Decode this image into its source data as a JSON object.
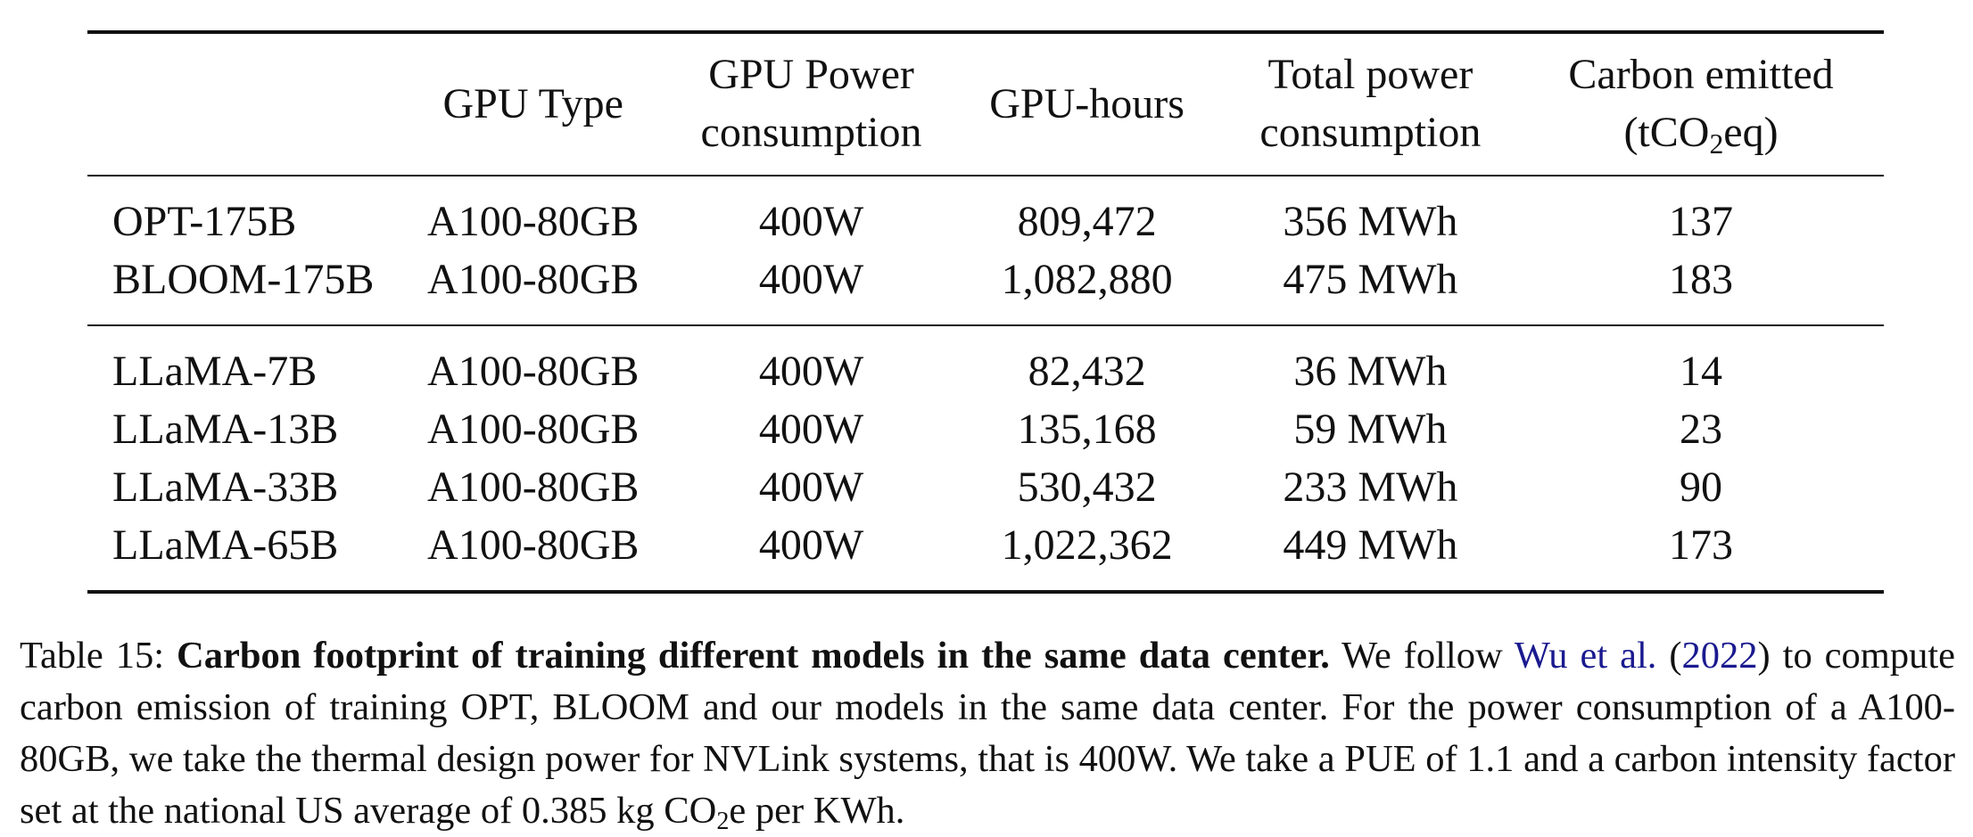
{
  "table": {
    "headers": {
      "model": "",
      "gpu_type": "GPU Type",
      "gpu_power_line1": "GPU Power",
      "gpu_power_line2": "consumption",
      "gpu_hours": "GPU-hours",
      "total_power_line1": "Total power",
      "total_power_line2": "consumption",
      "carbon_line1": "Carbon emitted",
      "carbon_line2_pre": "(tCO",
      "carbon_line2_sub": "2",
      "carbon_line2_post": "eq)"
    },
    "rows": [
      {
        "model": "OPT-175B",
        "gpu_type": "A100-80GB",
        "gpu_power": "400W",
        "gpu_hours": "809,472",
        "total_power": "356 MWh",
        "carbon": "137"
      },
      {
        "model": "BLOOM-175B",
        "gpu_type": "A100-80GB",
        "gpu_power": "400W",
        "gpu_hours": "1,082,880",
        "total_power": "475 MWh",
        "carbon": "183"
      },
      {
        "model": "LLaMA-7B",
        "gpu_type": "A100-80GB",
        "gpu_power": "400W",
        "gpu_hours": "82,432",
        "total_power": "36 MWh",
        "carbon": "14"
      },
      {
        "model": "LLaMA-13B",
        "gpu_type": "A100-80GB",
        "gpu_power": "400W",
        "gpu_hours": "135,168",
        "total_power": "59 MWh",
        "carbon": "23"
      },
      {
        "model": "LLaMA-33B",
        "gpu_type": "A100-80GB",
        "gpu_power": "400W",
        "gpu_hours": "530,432",
        "total_power": "233 MWh",
        "carbon": "90"
      },
      {
        "model": "LLaMA-65B",
        "gpu_type": "A100-80GB",
        "gpu_power": "400W",
        "gpu_hours": "1,022,362",
        "total_power": "449 MWh",
        "carbon": "173"
      }
    ]
  },
  "caption": {
    "label": "Table 15:",
    "bold_title": "Carbon footprint of training different models in the same data center.",
    "text1": "We follow",
    "citation_authors": "Wu et al.",
    "citation_open": "(",
    "citation_year": "2022",
    "citation_close": ")",
    "text2": "to compute carbon emission of training OPT, BLOOM and our models in the same data center. For the power consumption of a A100-80GB, we take the thermal design power for NVLink systems, that is 400W. We take a PUE of 1.1 and a carbon intensity factor set at the national US average of 0.385 kg CO",
    "text2_sub": "2",
    "text3": "e per KWh."
  },
  "colors": {
    "text": "#111111",
    "citation_link": "#1a1a8f"
  }
}
